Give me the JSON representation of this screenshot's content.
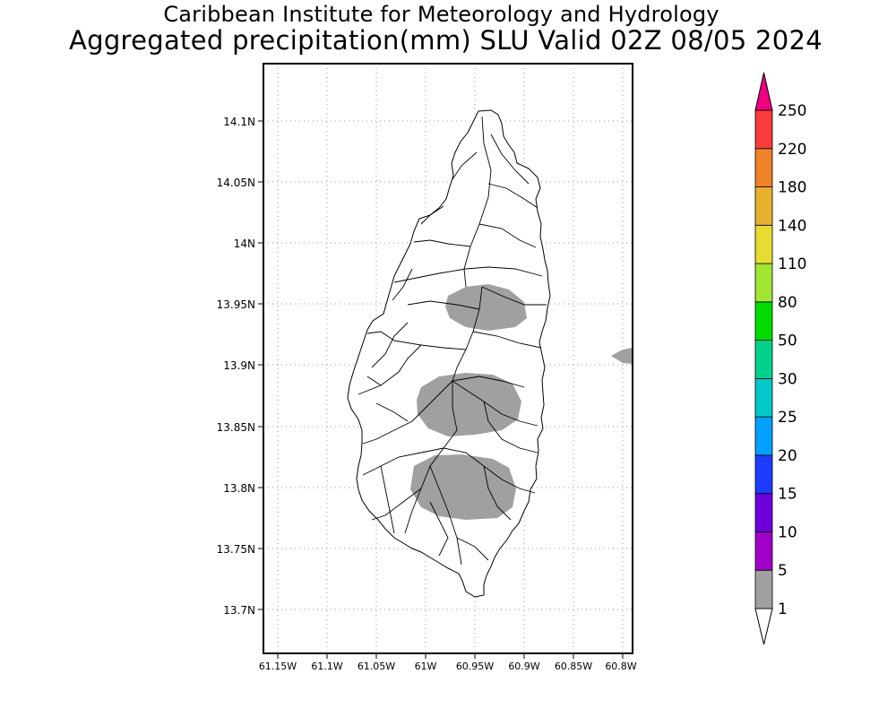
{
  "header": {
    "line1": "Caribbean Institute for Meteorology and Hydrology",
    "line2": "Aggregated precipitation(mm) SLU Valid 02Z 08/05 2024"
  },
  "axes": {
    "x_ticks": [
      "61.15W",
      "61.1W",
      "61.05W",
      "61W",
      "60.95W",
      "60.9W",
      "60.85W",
      "60.8W"
    ],
    "y_ticks": [
      "14.1N",
      "14.05N",
      "14N",
      "13.95N",
      "13.9N",
      "13.85N",
      "13.8N",
      "13.75N",
      "13.7N"
    ]
  },
  "colorbar": {
    "levels": [
      {
        "label": "1",
        "color": "#ffffff"
      },
      {
        "label": "5",
        "color": "#a0a0a0"
      },
      {
        "label": "10",
        "color": "#a000c8"
      },
      {
        "label": "15",
        "color": "#6e00dc"
      },
      {
        "label": "20",
        "color": "#1e3cff"
      },
      {
        "label": "25",
        "color": "#00a0ff"
      },
      {
        "label": "30",
        "color": "#00c8c8"
      },
      {
        "label": "50",
        "color": "#00d28c"
      },
      {
        "label": "80",
        "color": "#00dc00"
      },
      {
        "label": "110",
        "color": "#a0e632"
      },
      {
        "label": "140",
        "color": "#e6dc32"
      },
      {
        "label": "180",
        "color": "#e6af2d"
      },
      {
        "label": "220",
        "color": "#f08228"
      },
      {
        "label": "250",
        "color": "#fa3c3c"
      }
    ],
    "top_color": "#f00082"
  },
  "colors": {
    "rain_fill": "#a0a0a0",
    "grid": "#9a9a9a"
  }
}
